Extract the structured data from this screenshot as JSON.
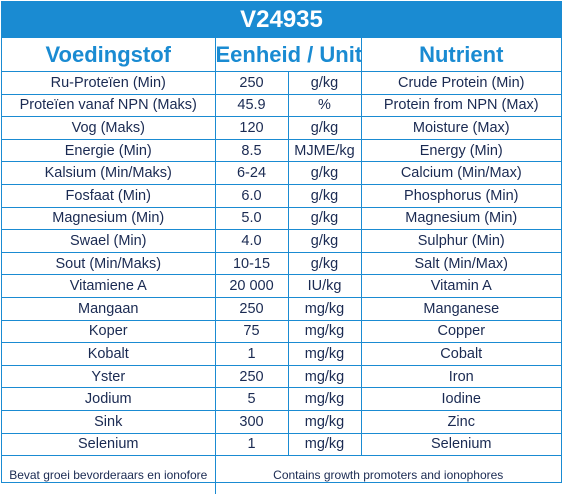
{
  "title": "V24935",
  "headers": {
    "afrikaans": "Voedingstof",
    "unit": "Eenheid / Unit",
    "english": "Nutrient"
  },
  "rows": [
    {
      "af": "Ru-Proteïen (Min)",
      "value": "250",
      "unit": "g/kg",
      "en": "Crude Protein (Min)"
    },
    {
      "af": "Proteïen vanaf NPN (Maks)",
      "value": "45.9",
      "unit": "%",
      "en": "Protein from NPN (Max)"
    },
    {
      "af": "Vog (Maks)",
      "value": "120",
      "unit": "g/kg",
      "en": "Moisture (Max)"
    },
    {
      "af": "Energie (Min)",
      "value": "8.5",
      "unit": "MJME/kg",
      "en": "Energy (Min)"
    },
    {
      "af": "Kalsium (Min/Maks)",
      "value": "6-24",
      "unit": "g/kg",
      "en": "Calcium (Min/Max)"
    },
    {
      "af": "Fosfaat (Min)",
      "value": "6.0",
      "unit": "g/kg",
      "en": "Phosphorus (Min)"
    },
    {
      "af": "Magnesium (Min)",
      "value": "5.0",
      "unit": "g/kg",
      "en": "Magnesium (Min)"
    },
    {
      "af": "Swael (Min)",
      "value": "4.0",
      "unit": "g/kg",
      "en": "Sulphur (Min)"
    },
    {
      "af": "Sout (Min/Maks)",
      "value": "10-15",
      "unit": "g/kg",
      "en": "Salt (Min/Max)"
    },
    {
      "af": "Vitamiene A",
      "value": "20 000",
      "unit": "IU/kg",
      "en": "Vitamin A"
    },
    {
      "af": "Mangaan",
      "value": "250",
      "unit": "mg/kg",
      "en": "Manganese"
    },
    {
      "af": "Koper",
      "value": "75",
      "unit": "mg/kg",
      "en": "Copper"
    },
    {
      "af": "Kobalt",
      "value": "1",
      "unit": "mg/kg",
      "en": "Cobalt"
    },
    {
      "af": "Yster",
      "value": "250",
      "unit": "mg/kg",
      "en": "Iron"
    },
    {
      "af": "Jodium",
      "value": "5",
      "unit": "mg/kg",
      "en": "Iodine"
    },
    {
      "af": "Sink",
      "value": "300",
      "unit": "mg/kg",
      "en": "Zinc"
    },
    {
      "af": "Selenium",
      "value": "1",
      "unit": "mg/kg",
      "en": "Selenium"
    }
  ],
  "footer": {
    "afrikaans": "Bevat groei bevorderaars en ionofore",
    "english": "Contains growth promoters and ionophores"
  },
  "colors": {
    "accent": "#1a8bd2",
    "text": "#1a2a52"
  }
}
